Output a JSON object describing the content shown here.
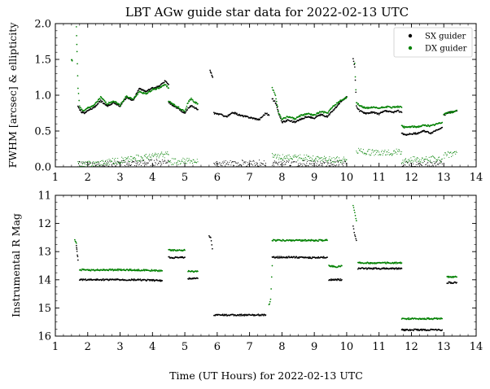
{
  "title": "LBT AGw guide star data for 2022-02-13 UTC",
  "xlabel": "Time (UT Hours) for 2022-02-13 UTC",
  "colors": {
    "SX": "#000000",
    "DX": "#008000"
  },
  "chart_data": [
    {
      "type": "scatter",
      "ylabel": "FWHM [arcsec] & ellipticity",
      "xlim": [
        1,
        14
      ],
      "ylim": [
        0,
        2
      ],
      "xticks": [
        1,
        2,
        3,
        4,
        5,
        6,
        7,
        8,
        9,
        10,
        11,
        12,
        13,
        14
      ],
      "yticks": [
        0.0,
        0.5,
        1.0,
        1.5,
        2.0
      ],
      "ytick_labels": [
        "0.0",
        "0.5",
        "1.0",
        "1.5",
        "2.0"
      ],
      "legend": {
        "position": "top-right",
        "entries": [
          "SX guider",
          "DX guider"
        ]
      },
      "series": [
        {
          "name": "SX guider",
          "metric": "FWHM",
          "segments": [
            {
              "x": [
                1.7,
                1.75,
                1.8,
                1.9,
                2.0,
                2.2,
                2.4,
                2.6,
                2.8,
                3.0,
                3.2,
                3.4,
                3.6,
                3.8,
                4.0,
                4.2,
                4.4,
                4.5
              ],
              "y": [
                0.85,
                0.8,
                0.77,
                0.75,
                0.78,
                0.83,
                0.92,
                0.85,
                0.9,
                0.85,
                0.97,
                0.93,
                1.1,
                1.05,
                1.1,
                1.12,
                1.2,
                1.15
              ]
            },
            {
              "x": [
                4.5,
                4.7,
                4.9,
                5.0,
                5.1,
                5.2,
                5.3,
                5.4
              ],
              "y": [
                0.9,
                0.84,
                0.78,
                0.75,
                0.82,
                0.85,
                0.83,
                0.8
              ]
            },
            {
              "x": [
                5.78,
                5.82,
                5.86
              ],
              "y": [
                1.35,
                1.3,
                1.25
              ]
            },
            {
              "x": [
                5.9,
                6.1,
                6.3,
                6.5,
                6.7,
                6.9,
                7.1,
                7.3,
                7.5,
                7.6
              ],
              "y": [
                0.75,
                0.73,
                0.7,
                0.76,
                0.72,
                0.7,
                0.68,
                0.66,
                0.75,
                0.72
              ]
            },
            {
              "x": [
                7.7,
                7.8,
                7.9,
                8.0,
                8.2,
                8.4,
                8.6,
                8.8,
                9.0,
                9.2,
                9.4,
                9.6,
                9.8,
                10.0
              ],
              "y": [
                0.95,
                0.9,
                0.75,
                0.62,
                0.65,
                0.62,
                0.67,
                0.7,
                0.68,
                0.73,
                0.7,
                0.8,
                0.9,
                0.98
              ]
            },
            {
              "x": [
                10.2,
                10.25,
                10.3,
                10.4,
                10.6,
                10.8,
                11.0,
                11.2,
                11.4,
                11.6,
                11.7
              ],
              "y": [
                1.5,
                1.4,
                0.85,
                0.78,
                0.75,
                0.76,
                0.74,
                0.78,
                0.76,
                0.78,
                0.76
              ]
            },
            {
              "x": [
                11.7,
                11.8,
                12.0,
                12.2,
                12.4,
                12.6,
                12.8,
                12.95
              ],
              "y": [
                0.47,
                0.45,
                0.46,
                0.47,
                0.5,
                0.47,
                0.52,
                0.55
              ]
            },
            {
              "x": [
                13.0,
                13.1,
                13.2,
                13.3,
                13.4
              ],
              "y": [
                0.72,
                0.75,
                0.76,
                0.77,
                0.78
              ]
            }
          ]
        },
        {
          "name": "DX guider",
          "metric": "FWHM",
          "segments": [
            {
              "x": [
                1.5,
                1.52
              ],
              "y": [
                1.5,
                1.48
              ]
            },
            {
              "x": [
                1.65,
                1.67,
                1.7,
                1.75,
                1.8,
                1.9,
                2.0,
                2.2,
                2.4,
                2.6,
                2.8,
                3.0,
                3.2,
                3.4,
                3.6,
                3.8,
                4.0,
                4.2,
                4.4,
                4.5
              ],
              "y": [
                1.95,
                1.6,
                1.1,
                0.85,
                0.8,
                0.78,
                0.82,
                0.86,
                0.97,
                0.88,
                0.92,
                0.86,
                0.99,
                0.94,
                1.05,
                1.02,
                1.08,
                1.1,
                1.15,
                1.1
              ]
            },
            {
              "x": [
                4.5,
                4.7,
                4.9,
                5.0,
                5.1,
                5.2,
                5.3,
                5.4
              ],
              "y": [
                0.92,
                0.86,
                0.8,
                0.78,
                0.9,
                0.95,
                0.9,
                0.88
              ]
            },
            {
              "x": [
                7.7,
                7.8,
                7.9,
                8.0,
                8.2,
                8.4,
                8.6,
                8.8,
                9.0,
                9.2,
                9.4,
                9.6,
                9.8,
                10.0
              ],
              "y": [
                1.1,
                1.0,
                0.75,
                0.67,
                0.7,
                0.67,
                0.72,
                0.74,
                0.72,
                0.77,
                0.75,
                0.85,
                0.92,
                0.97
              ]
            },
            {
              "x": [
                10.25,
                10.3,
                10.4,
                10.6,
                10.8,
                11.0,
                11.2,
                11.4,
                11.6,
                11.7
              ],
              "y": [
                1.45,
                0.9,
                0.85,
                0.82,
                0.83,
                0.82,
                0.84,
                0.83,
                0.84,
                0.83
              ]
            },
            {
              "x": [
                11.7,
                11.8,
                12.0,
                12.2,
                12.4,
                12.6,
                12.8,
                12.95
              ],
              "y": [
                0.57,
                0.55,
                0.56,
                0.56,
                0.58,
                0.57,
                0.6,
                0.62
              ]
            },
            {
              "x": [
                13.0,
                13.1,
                13.2,
                13.3,
                13.4
              ],
              "y": [
                0.73,
                0.75,
                0.76,
                0.77,
                0.79
              ]
            }
          ]
        },
        {
          "name": "SX guider",
          "metric": "ellipticity",
          "segments": [
            {
              "x": [
                1.7,
                2.2,
                2.8,
                3.4,
                4.0,
                4.5
              ],
              "y": [
                0.03,
                0.03,
                0.04,
                0.05,
                0.06,
                0.08
              ]
            },
            {
              "x": [
                5.9,
                6.3,
                6.7,
                7.1,
                7.5
              ],
              "y": [
                0.04,
                0.04,
                0.05,
                0.05,
                0.05
              ]
            },
            {
              "x": [
                7.7,
                8.4,
                9.0,
                9.6,
                10.0
              ],
              "y": [
                0.05,
                0.04,
                0.05,
                0.05,
                0.05
              ]
            },
            {
              "x": [
                11.7,
                12.2,
                12.95
              ],
              "y": [
                0.03,
                0.03,
                0.04
              ]
            }
          ]
        },
        {
          "name": "DX guider",
          "metric": "ellipticity",
          "segments": [
            {
              "x": [
                1.7,
                2.0,
                2.5,
                3.0,
                3.5,
                4.0,
                4.5
              ],
              "y": [
                0.03,
                0.04,
                0.06,
                0.09,
                0.12,
                0.15,
                0.17
              ]
            },
            {
              "x": [
                4.5,
                5.0,
                5.4
              ],
              "y": [
                0.07,
                0.08,
                0.07
              ]
            },
            {
              "x": [
                7.7,
                8.4,
                9.0,
                9.6,
                10.0
              ],
              "y": [
                0.14,
                0.13,
                0.12,
                0.1,
                0.1
              ]
            },
            {
              "x": [
                10.3,
                10.8,
                11.2,
                11.7
              ],
              "y": [
                0.22,
                0.2,
                0.2,
                0.21
              ]
            },
            {
              "x": [
                11.7,
                12.2,
                12.95
              ],
              "y": [
                0.09,
                0.1,
                0.11
              ]
            },
            {
              "x": [
                13.0,
                13.2,
                13.4
              ],
              "y": [
                0.16,
                0.18,
                0.2
              ]
            }
          ]
        }
      ]
    },
    {
      "type": "scatter",
      "ylabel": "Instrumental R Mag",
      "xlim": [
        1,
        14
      ],
      "ylim": [
        16,
        11
      ],
      "y_inverted": true,
      "xticks": [
        1,
        2,
        3,
        4,
        5,
        6,
        7,
        8,
        9,
        10,
        11,
        12,
        13,
        14
      ],
      "yticks": [
        11,
        12,
        13,
        14,
        15,
        16
      ],
      "ytick_labels": [
        "11",
        "12",
        "13",
        "14",
        "15",
        "16"
      ],
      "series": [
        {
          "name": "SX guider",
          "segments": [
            {
              "x": [
                1.65,
                1.67,
                1.7
              ],
              "y": [
                12.8,
                13.0,
                13.3
              ]
            },
            {
              "x": [
                1.75,
                2.5,
                3.5,
                4.3
              ],
              "y": [
                14.0,
                14.0,
                14.0,
                14.03
              ]
            },
            {
              "x": [
                4.5,
                4.8,
                5.0
              ],
              "y": [
                13.2,
                13.22,
                13.2
              ]
            },
            {
              "x": [
                5.1,
                5.3,
                5.4
              ],
              "y": [
                13.95,
                13.95,
                13.95
              ]
            },
            {
              "x": [
                5.75,
                5.8,
                5.85
              ],
              "y": [
                12.45,
                12.5,
                12.9
              ]
            },
            {
              "x": [
                5.9,
                6.5,
                7.0,
                7.5
              ],
              "y": [
                15.25,
                15.25,
                15.25,
                15.25
              ]
            },
            {
              "x": [
                7.7,
                8.4,
                9.0,
                9.4
              ],
              "y": [
                13.2,
                13.2,
                13.22,
                13.2
              ]
            },
            {
              "x": [
                9.45,
                9.7,
                9.85
              ],
              "y": [
                14.0,
                14.0,
                14.0
              ]
            },
            {
              "x": [
                10.2,
                10.25,
                10.3
              ],
              "y": [
                12.1,
                12.4,
                12.6
              ]
            },
            {
              "x": [
                10.35,
                11.0,
                11.7
              ],
              "y": [
                13.6,
                13.6,
                13.6
              ]
            },
            {
              "x": [
                11.7,
                12.3,
                12.95
              ],
              "y": [
                15.78,
                15.78,
                15.78
              ]
            },
            {
              "x": [
                13.1,
                13.3,
                13.4
              ],
              "y": [
                14.1,
                14.1,
                14.1
              ]
            }
          ]
        },
        {
          "name": "DX guider",
          "segments": [
            {
              "x": [
                1.6,
                1.65
              ],
              "y": [
                12.6,
                12.7
              ]
            },
            {
              "x": [
                1.75,
                2.5,
                3.5,
                4.3
              ],
              "y": [
                13.65,
                13.65,
                13.65,
                13.68
              ]
            },
            {
              "x": [
                4.5,
                4.8,
                5.0
              ],
              "y": [
                12.95,
                12.95,
                12.95
              ]
            },
            {
              "x": [
                5.1,
                5.3,
                5.4
              ],
              "y": [
                13.7,
                13.7,
                13.7
              ]
            },
            {
              "x": [
                7.6,
                7.65,
                7.7
              ],
              "y": [
                14.9,
                14.7,
                13.5
              ]
            },
            {
              "x": [
                7.7,
                8.4,
                9.0,
                9.4
              ],
              "y": [
                12.6,
                12.6,
                12.6,
                12.6
              ]
            },
            {
              "x": [
                9.45,
                9.7,
                9.85
              ],
              "y": [
                13.5,
                13.55,
                13.5
              ]
            },
            {
              "x": [
                10.2,
                10.25,
                10.3
              ],
              "y": [
                11.35,
                11.6,
                11.9
              ]
            },
            {
              "x": [
                10.35,
                11.0,
                11.7
              ],
              "y": [
                13.4,
                13.4,
                13.4
              ]
            },
            {
              "x": [
                11.7,
                12.3,
                12.95
              ],
              "y": [
                15.38,
                15.38,
                15.38
              ]
            },
            {
              "x": [
                13.1,
                13.3,
                13.4
              ],
              "y": [
                13.9,
                13.9,
                13.9
              ]
            }
          ]
        }
      ]
    }
  ]
}
